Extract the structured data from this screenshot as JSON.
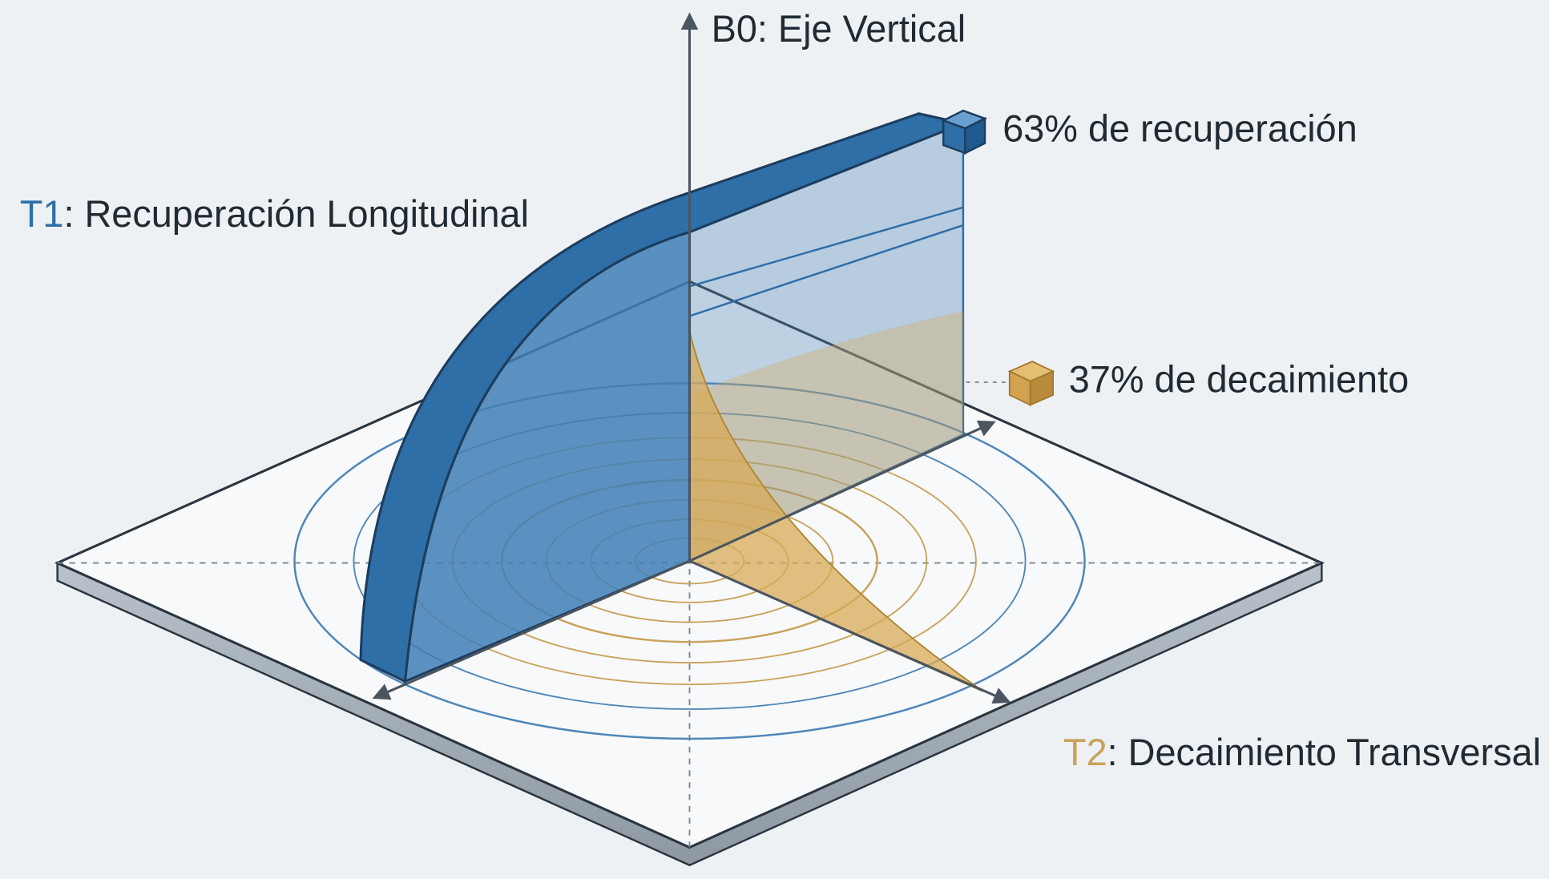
{
  "labels": {
    "b0": "B0: Eje Vertical",
    "recovery": "63% de recuperación",
    "t1": {
      "code": "T1",
      "text": ": Recuperación Longitudinal"
    },
    "decay": "37% de decaimiento",
    "t2": {
      "code": "T2",
      "text": ": Decaimiento Transversal"
    }
  }
}
